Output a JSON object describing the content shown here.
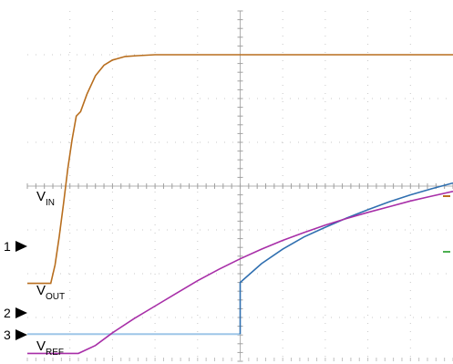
{
  "chart_data": {
    "type": "line",
    "title": "",
    "xlabel": "",
    "ylabel": "",
    "grid": true,
    "divisions": {
      "x": 10,
      "y": 8
    },
    "xlim": [
      0,
      10
    ],
    "ylim": [
      0,
      8
    ],
    "series": [
      {
        "name": "VIN",
        "label_main": "V",
        "label_sub": "IN",
        "marker": "1",
        "color": "#b86e1e",
        "x": [
          0,
          0.3,
          0.55,
          0.65,
          0.75,
          0.85,
          0.95,
          1.05,
          1.15,
          1.25,
          1.4,
          1.6,
          1.8,
          2.0,
          2.3,
          2.6,
          3.0,
          4.0,
          5.0,
          6.0,
          8.0,
          10.0
        ],
        "y": [
          1.78,
          1.78,
          1.78,
          2.2,
          2.85,
          3.6,
          4.4,
          5.05,
          5.6,
          5.7,
          6.1,
          6.52,
          6.76,
          6.88,
          6.96,
          6.98,
          7.0,
          7.0,
          7.0,
          7.0,
          7.0,
          7.0
        ]
      },
      {
        "name": "VOUT",
        "label_main": "V",
        "label_sub": "OUT",
        "marker": "2",
        "color": "#2f6fb0",
        "baseline_color": "#9ec6e8",
        "x": [
          0,
          2.2,
          5.0,
          5.0,
          5.5,
          6.0,
          6.5,
          7.0,
          7.5,
          8.0,
          8.5,
          9.0,
          9.5,
          10.0
        ],
        "y": [
          0.62,
          0.62,
          0.62,
          1.8,
          2.23,
          2.56,
          2.84,
          3.06,
          3.27,
          3.46,
          3.64,
          3.8,
          3.94,
          4.07
        ]
      },
      {
        "name": "VREF",
        "label_main": "V",
        "label_sub": "REF",
        "marker": "3",
        "color": "#a82fa8",
        "x": [
          0,
          0.5,
          1.2,
          1.6,
          2.0,
          2.5,
          3.0,
          3.5,
          4.0,
          4.5,
          5.0,
          5.5,
          6.0,
          6.5,
          7.0,
          7.5,
          8.0,
          8.5,
          9.0,
          9.5,
          10.0
        ],
        "y": [
          0.18,
          0.18,
          0.18,
          0.36,
          0.65,
          0.97,
          1.26,
          1.55,
          1.84,
          2.1,
          2.34,
          2.56,
          2.76,
          2.94,
          3.11,
          3.26,
          3.4,
          3.53,
          3.66,
          3.77,
          3.88
        ]
      }
    ]
  }
}
